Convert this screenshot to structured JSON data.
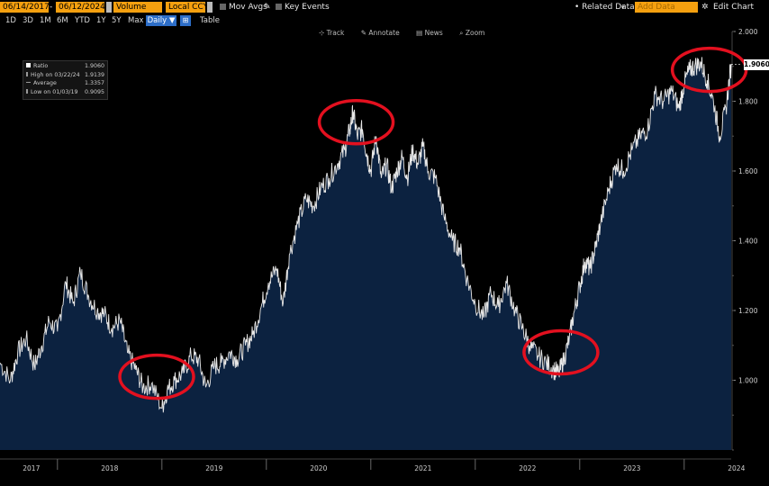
{
  "header": {
    "start_date": "06/14/2017",
    "end_date": "06/12/2024",
    "volume": "Volume",
    "currency": "Local CCY",
    "mov_avgs": "Mov Avgs",
    "key_events": "Key Events",
    "related_data": "• Related Data",
    "add_data": "Add Data",
    "edit_chart": "Edit Chart"
  },
  "ranges": [
    "1D",
    "3D",
    "1M",
    "6M",
    "YTD",
    "1Y",
    "5Y",
    "Max"
  ],
  "frequency": "Daily ▼",
  "table": "Table",
  "toolbar": {
    "track": "Track",
    "annotate": "Annotate",
    "news": "News",
    "zoom": "Zoom"
  },
  "legend": {
    "series": "Ratio",
    "series_value": "1.9060",
    "high": "High on 03/22/24",
    "high_value": "1.9139",
    "average": "Average",
    "average_value": "1.3357",
    "low": "Low on 01/03/19",
    "low_value": "0.9095"
  },
  "last_value": "1.9060",
  "colors": {
    "fill": "#0c2240",
    "line": "#e8e8e8",
    "accent": "#f5a00f",
    "highlight": "#e3101f"
  },
  "chart_data": {
    "type": "area",
    "title": "",
    "xlabel": "",
    "ylabel": "",
    "ylim": [
      0.8,
      2.0
    ],
    "y_ticks": [
      "1.000",
      "1.200",
      "1.400",
      "1.600",
      "1.800",
      "2.000"
    ],
    "x_ticks": [
      "2017",
      "2018",
      "2019",
      "2020",
      "2021",
      "2022",
      "2023",
      "2024"
    ],
    "x_start": 2017.45,
    "x_end": 2024.45,
    "series": [
      {
        "x": [
          2017.45,
          2017.55,
          2017.62,
          2017.7,
          2017.78,
          2017.85,
          2017.92,
          2018.0,
          2018.08,
          2018.15,
          2018.22,
          2018.3,
          2018.38,
          2018.45,
          2018.52,
          2018.6,
          2018.67,
          2018.75,
          2018.82,
          2018.9,
          2019.0,
          2019.05,
          2019.12,
          2019.2,
          2019.28,
          2019.35,
          2019.42,
          2019.5,
          2019.57,
          2019.65,
          2019.72,
          2019.8,
          2019.87,
          2019.95,
          2020.02,
          2020.1,
          2020.16,
          2020.22,
          2020.3,
          2020.38,
          2020.45,
          2020.52,
          2020.6,
          2020.68,
          2020.75,
          2020.8,
          2020.83,
          2020.87,
          2020.92,
          2020.96,
          2021.0,
          2021.05,
          2021.1,
          2021.15,
          2021.2,
          2021.25,
          2021.3,
          2021.35,
          2021.4,
          2021.45,
          2021.5,
          2021.55,
          2021.62,
          2021.7,
          2021.78,
          2021.85,
          2021.92,
          2022.0,
          2022.08,
          2022.15,
          2022.22,
          2022.3,
          2022.38,
          2022.45,
          2022.52,
          2022.6,
          2022.68,
          2022.75,
          2022.8,
          2022.85,
          2022.9,
          2022.95,
          2023.0,
          2023.05,
          2023.1,
          2023.15,
          2023.2,
          2023.28,
          2023.35,
          2023.42,
          2023.5,
          2023.58,
          2023.65,
          2023.72,
          2023.8,
          2023.88,
          2023.95,
          2024.0,
          2024.05,
          2024.1,
          2024.16,
          2024.22,
          2024.28,
          2024.34,
          2024.4,
          2024.45
        ],
        "y": [
          1.05,
          1.0,
          1.08,
          1.12,
          1.04,
          1.1,
          1.17,
          1.14,
          1.28,
          1.22,
          1.31,
          1.24,
          1.2,
          1.19,
          1.15,
          1.17,
          1.08,
          1.03,
          0.98,
          0.99,
          0.92,
          0.97,
          1.0,
          1.02,
          1.07,
          1.06,
          0.98,
          1.04,
          1.05,
          1.08,
          1.06,
          1.1,
          1.13,
          1.21,
          1.28,
          1.32,
          1.22,
          1.36,
          1.45,
          1.52,
          1.5,
          1.55,
          1.58,
          1.62,
          1.66,
          1.72,
          1.77,
          1.7,
          1.72,
          1.65,
          1.6,
          1.7,
          1.58,
          1.62,
          1.55,
          1.6,
          1.64,
          1.58,
          1.66,
          1.62,
          1.67,
          1.6,
          1.58,
          1.47,
          1.4,
          1.38,
          1.29,
          1.22,
          1.18,
          1.25,
          1.21,
          1.28,
          1.2,
          1.15,
          1.1,
          1.07,
          1.05,
          1.03,
          1.02,
          1.06,
          1.12,
          1.2,
          1.27,
          1.34,
          1.32,
          1.38,
          1.45,
          1.55,
          1.62,
          1.6,
          1.66,
          1.7,
          1.72,
          1.82,
          1.8,
          1.83,
          1.78,
          1.85,
          1.89,
          1.9,
          1.91,
          1.86,
          1.8,
          1.7,
          1.78,
          1.906
        ]
      }
    ],
    "annotations": [
      {
        "x": 2018.95,
        "y": 1.01
      },
      {
        "x": 2020.86,
        "y": 1.74
      },
      {
        "x": 2022.82,
        "y": 1.08
      },
      {
        "x": 2024.24,
        "y": 1.89
      }
    ],
    "grid": false,
    "legend_position": "top-left"
  }
}
